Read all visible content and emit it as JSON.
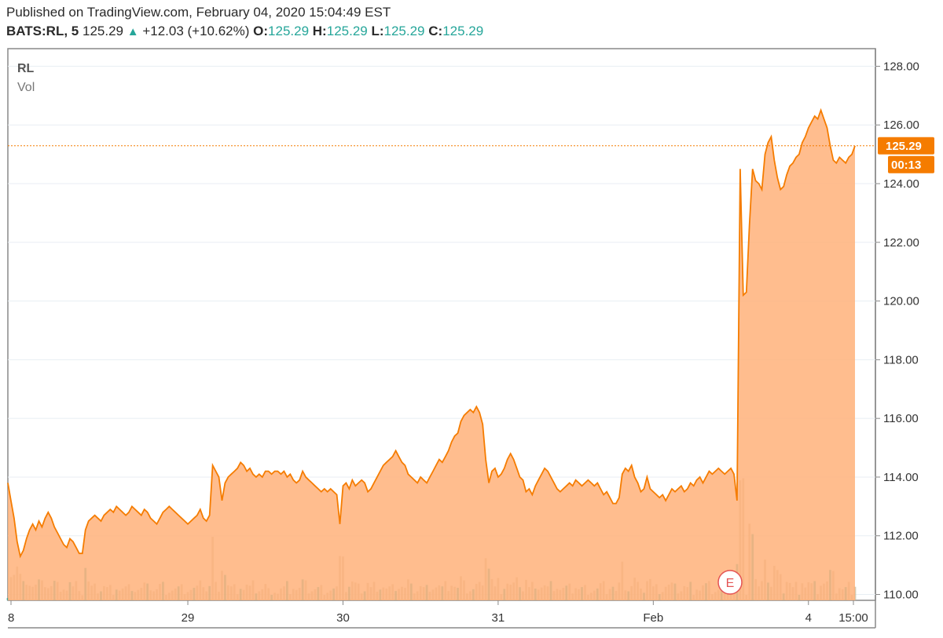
{
  "header": {
    "published": "Published on TradingView.com, February 04, 2020 15:04:49 EST",
    "symbol": "BATS:RL, 5",
    "price": "125.29",
    "change": "+12.03 (+10.62%)",
    "open_label": "O:",
    "open": "125.29",
    "high_label": "H:",
    "high": "125.29",
    "low_label": "L:",
    "low": "125.29",
    "close_label": "C:",
    "close": "125.29"
  },
  "colors": {
    "line": "#f57c00",
    "fill": "#ffb27a",
    "volume": "#c8b99a",
    "volume_up": "#26a69a",
    "grid": "#e8eef3",
    "up_text": "#26a69a"
  },
  "chart_data": {
    "type": "area",
    "legend": [
      "RL",
      "Vol"
    ],
    "ylim": [
      109.8,
      128.6
    ],
    "yticks": [
      "128.00",
      "126.00",
      "124.00",
      "122.00",
      "120.00",
      "118.00",
      "116.00",
      "114.00",
      "112.00",
      "110.00"
    ],
    "xticks": [
      "8",
      "29",
      "30",
      "31",
      "Feb",
      "4",
      "15:00"
    ],
    "last_price_label": "125.29",
    "countdown_label": "00:13",
    "earnings_marker": "E",
    "grid": true,
    "series": [
      {
        "values": [
          113.8,
          113.2,
          112.6,
          111.8,
          111.3,
          111.5,
          111.9,
          112.2,
          112.4,
          112.2,
          112.5,
          112.3,
          112.6,
          112.8,
          112.6,
          112.3,
          112.1,
          111.9,
          111.7,
          111.6,
          111.9,
          111.8,
          111.6,
          111.4,
          111.4,
          112.2,
          112.5,
          112.6,
          112.7,
          112.6,
          112.5,
          112.7,
          112.8,
          112.9,
          112.8,
          113.0,
          112.9,
          112.8,
          112.7,
          112.8,
          113.0,
          112.9,
          112.8,
          112.7,
          112.9,
          112.8,
          112.6,
          112.5,
          112.4,
          112.6,
          112.8,
          112.9,
          113.0,
          112.9,
          112.8,
          112.7,
          112.6,
          112.5,
          112.4,
          112.5,
          112.6,
          112.7,
          112.9,
          112.6,
          112.5,
          112.7,
          114.4,
          114.2,
          114.0,
          113.2,
          113.8,
          114.0,
          114.1,
          114.2,
          114.3,
          114.5,
          114.4,
          114.2,
          114.3,
          114.1,
          114.0,
          114.1,
          114.0,
          114.2,
          114.2,
          114.1,
          114.2,
          114.2,
          114.1,
          114.2,
          114.0,
          114.1,
          113.9,
          113.8,
          113.9,
          114.2,
          114.0,
          113.9,
          113.8,
          113.7,
          113.6,
          113.5,
          113.6,
          113.5,
          113.6,
          113.5,
          113.4,
          112.4,
          113.7,
          113.8,
          113.6,
          113.9,
          113.7,
          113.8,
          113.9,
          113.8,
          113.5,
          113.6,
          113.8,
          114.0,
          114.2,
          114.4,
          114.5,
          114.6,
          114.7,
          114.9,
          114.7,
          114.5,
          114.4,
          114.1,
          114.0,
          113.9,
          113.8,
          114.0,
          113.9,
          113.8,
          114.0,
          114.2,
          114.4,
          114.6,
          114.5,
          114.7,
          114.9,
          115.2,
          115.4,
          115.5,
          115.9,
          116.1,
          116.2,
          116.3,
          116.2,
          116.4,
          116.2,
          115.8,
          114.6,
          113.8,
          114.2,
          114.3,
          114.0,
          114.1,
          114.3,
          114.6,
          114.8,
          114.6,
          114.3,
          114.0,
          113.9,
          113.5,
          113.6,
          113.4,
          113.7,
          113.9,
          114.1,
          114.3,
          114.2,
          114.0,
          113.8,
          113.6,
          113.5,
          113.6,
          113.7,
          113.8,
          113.7,
          113.9,
          113.8,
          113.7,
          113.8,
          113.9,
          113.8,
          113.7,
          113.8,
          113.6,
          113.4,
          113.5,
          113.3,
          113.1,
          113.1,
          113.3,
          114.1,
          114.3,
          114.2,
          114.4,
          114.0,
          113.8,
          113.5,
          113.6,
          114.0,
          113.6,
          113.5,
          113.4,
          113.3,
          113.4,
          113.2,
          113.4,
          113.6,
          113.5,
          113.6,
          113.7,
          113.5,
          113.6,
          113.8,
          113.7,
          113.9,
          114.0,
          113.8,
          114.0,
          114.2,
          114.1,
          114.2,
          114.3,
          114.2,
          114.1,
          114.2,
          114.3,
          114.1,
          113.2,
          124.5,
          120.2,
          120.3,
          122.6,
          124.5,
          124.1,
          124.0,
          123.8,
          125.0,
          125.4,
          125.6,
          124.8,
          124.2,
          123.8,
          123.9,
          124.3,
          124.6,
          124.7,
          124.9,
          125.0,
          125.4,
          125.6,
          125.9,
          126.1,
          126.3,
          126.2,
          126.5,
          126.2,
          125.9,
          125.3,
          124.8,
          124.7,
          124.9,
          124.8,
          124.7,
          124.9,
          125.0,
          125.29
        ]
      }
    ]
  }
}
